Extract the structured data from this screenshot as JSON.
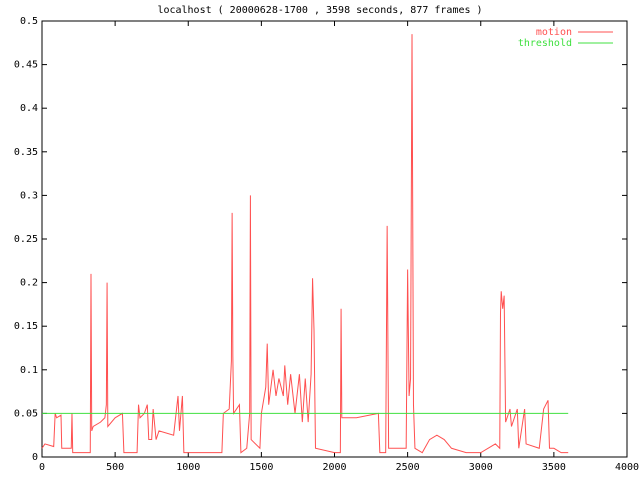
{
  "chart_data": {
    "type": "line",
    "title": "localhost ( 20000628-1700 , 3598 seconds, 877 frames )",
    "xlim": [
      0,
      4000
    ],
    "xticks": [
      0,
      500,
      1000,
      1500,
      2000,
      2500,
      3000,
      3500,
      4000
    ],
    "ylim": [
      0,
      0.5
    ],
    "yticks": [
      0,
      0.05,
      0.1,
      0.15,
      0.2,
      0.25,
      0.3,
      0.35,
      0.4,
      0.45,
      0.5
    ],
    "legend": "top-right",
    "series": [
      {
        "name": "motion",
        "color": "#ff5050",
        "x": [
          0,
          20,
          80,
          90,
          100,
          130,
          135,
          200,
          205,
          210,
          330,
          335,
          340,
          350,
          400,
          430,
          440,
          445,
          450,
          500,
          550,
          560,
          650,
          660,
          670,
          700,
          720,
          730,
          750,
          760,
          780,
          800,
          900,
          930,
          940,
          960,
          970,
          1230,
          1240,
          1280,
          1295,
          1300,
          1305,
          1310,
          1350,
          1360,
          1400,
          1420,
          1425,
          1430,
          1490,
          1500,
          1530,
          1540,
          1550,
          1580,
          1600,
          1620,
          1650,
          1660,
          1680,
          1700,
          1730,
          1760,
          1780,
          1800,
          1820,
          1840,
          1850,
          1860,
          1870,
          2000,
          2040,
          2045,
          2050,
          2150,
          2300,
          2310,
          2350,
          2360,
          2370,
          2490,
          2500,
          2510,
          2520,
          2530,
          2540,
          2550,
          2600,
          2650,
          2700,
          2750,
          2800,
          2900,
          3000,
          3100,
          3130,
          3135,
          3140,
          3150,
          3160,
          3170,
          3200,
          3210,
          3250,
          3260,
          3300,
          3310,
          3400,
          3430,
          3460,
          3470,
          3500,
          3550,
          3598
        ],
        "values": [
          0.01,
          0.015,
          0.012,
          0.05,
          0.045,
          0.048,
          0.01,
          0.01,
          0.05,
          0.005,
          0.005,
          0.21,
          0.03,
          0.035,
          0.04,
          0.045,
          0.06,
          0.2,
          0.035,
          0.045,
          0.05,
          0.005,
          0.005,
          0.06,
          0.045,
          0.05,
          0.06,
          0.02,
          0.02,
          0.055,
          0.02,
          0.03,
          0.025,
          0.07,
          0.03,
          0.07,
          0.005,
          0.005,
          0.05,
          0.055,
          0.11,
          0.28,
          0.115,
          0.05,
          0.06,
          0.005,
          0.01,
          0.05,
          0.3,
          0.02,
          0.01,
          0.05,
          0.08,
          0.13,
          0.06,
          0.1,
          0.07,
          0.09,
          0.07,
          0.105,
          0.06,
          0.095,
          0.05,
          0.095,
          0.04,
          0.09,
          0.04,
          0.095,
          0.205,
          0.145,
          0.01,
          0.005,
          0.005,
          0.17,
          0.045,
          0.045,
          0.05,
          0.005,
          0.005,
          0.265,
          0.01,
          0.01,
          0.215,
          0.07,
          0.09,
          0.485,
          0.06,
          0.01,
          0.005,
          0.02,
          0.025,
          0.02,
          0.01,
          0.005,
          0.005,
          0.015,
          0.01,
          0.165,
          0.19,
          0.17,
          0.185,
          0.04,
          0.055,
          0.035,
          0.055,
          0.01,
          0.055,
          0.015,
          0.01,
          0.055,
          0.065,
          0.01,
          0.01,
          0.005,
          0.005
        ]
      },
      {
        "name": "threshold",
        "color": "#40e040",
        "x": [
          0,
          3598
        ],
        "values": [
          0.05,
          0.05
        ]
      }
    ]
  }
}
